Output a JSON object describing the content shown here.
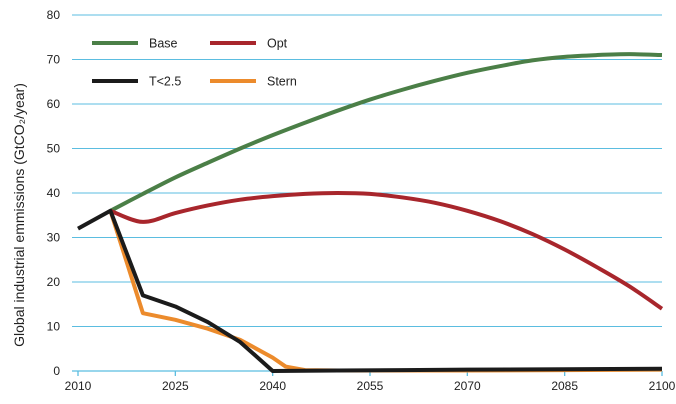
{
  "chart_data": {
    "type": "line",
    "ylabel": "Global industrial emmissions (GtCO₂/year)",
    "xlabel": "",
    "title": "",
    "xlim": [
      2010,
      2100
    ],
    "ylim": [
      0,
      80
    ],
    "x_ticks": [
      2010,
      2025,
      2040,
      2055,
      2070,
      2085,
      2100
    ],
    "y_ticks": [
      0,
      10,
      20,
      30,
      40,
      50,
      60,
      70,
      80
    ],
    "grid": "horizontal",
    "legend_position": "top-left",
    "series": [
      {
        "name": "Base",
        "color": "#4b7f47",
        "x": [
          2015,
          2020,
          2025,
          2030,
          2035,
          2040,
          2045,
          2050,
          2055,
          2060,
          2065,
          2070,
          2075,
          2080,
          2085,
          2090,
          2095,
          2100
        ],
        "y": [
          36,
          39.8,
          43.5,
          46.8,
          50,
          53,
          55.8,
          58.5,
          61,
          63.2,
          65.2,
          67,
          68.5,
          69.8,
          70.6,
          71,
          71.2,
          71
        ]
      },
      {
        "name": "Opt",
        "color": "#a8262c",
        "x": [
          2015,
          2020,
          2025,
          2030,
          2035,
          2040,
          2045,
          2050,
          2055,
          2060,
          2065,
          2070,
          2075,
          2080,
          2085,
          2090,
          2095,
          2100
        ],
        "y": [
          36,
          33.5,
          35.5,
          37.2,
          38.5,
          39.3,
          39.8,
          40,
          39.8,
          39,
          37.8,
          36,
          33.7,
          30.8,
          27.3,
          23.3,
          19,
          14
        ]
      },
      {
        "name": "T<2.5",
        "color": "#1b1b1b",
        "x": [
          2010,
          2015,
          2020,
          2025,
          2030,
          2035,
          2040,
          2045,
          2050,
          2060,
          2070,
          2085,
          2100
        ],
        "y": [
          32,
          36,
          17,
          14.5,
          11,
          6.5,
          0,
          0.05,
          0.1,
          0.2,
          0.3,
          0.4,
          0.5
        ]
      },
      {
        "name": "Stern",
        "color": "#ec8b2c",
        "x": [
          2015,
          2020,
          2025,
          2030,
          2035,
          2040,
          2042,
          2045,
          2050,
          2060,
          2070,
          2085,
          2100
        ],
        "y": [
          36,
          13,
          11.5,
          9.5,
          7,
          3,
          1,
          0.2,
          0.1,
          0.1,
          0.1,
          0.2,
          0.3
        ]
      }
    ]
  }
}
